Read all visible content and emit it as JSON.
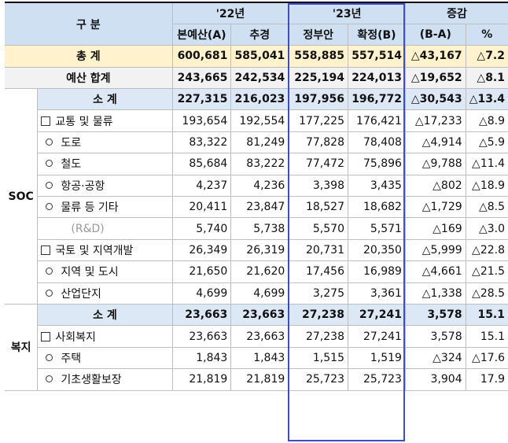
{
  "header": {
    "category": "구 분",
    "year22": "'22년",
    "year23": "'23년",
    "change": "증감",
    "col_main": "본예산(A)",
    "col_supp": "추경",
    "col_gov": "정부안",
    "col_final": "확정(B)",
    "col_diff": "(B-A)",
    "col_pct": "%"
  },
  "total": {
    "label": "총 계",
    "values": [
      "600,681",
      "585,041",
      "558,885",
      "557,514",
      "△43,167",
      "△7.2"
    ]
  },
  "budget_total": {
    "label": "예산 합계",
    "values": [
      "243,665",
      "242,534",
      "225,194",
      "224,013",
      "△19,652",
      "△8.1"
    ]
  },
  "soc": {
    "category": "SOC",
    "rows": [
      {
        "label": "소 계",
        "values": [
          "227,315",
          "216,023",
          "197,956",
          "196,772",
          "△30,543",
          "△13.4"
        ]
      },
      {
        "label": "교통 및 물류",
        "values": [
          "193,654",
          "192,554",
          "177,225",
          "176,421",
          "△17,233",
          "△8.9"
        ]
      },
      {
        "label": "도로",
        "values": [
          "83,322",
          "81,249",
          "77,828",
          "78,408",
          "△4,914",
          "△5.9"
        ]
      },
      {
        "label": "철도",
        "values": [
          "85,684",
          "83,222",
          "77,472",
          "75,896",
          "△9,788",
          "△11.4"
        ]
      },
      {
        "label": "항공·공항",
        "values": [
          "4,237",
          "4,236",
          "3,398",
          "3,435",
          "△802",
          "△18.9"
        ]
      },
      {
        "label": "물류 등 기타",
        "values": [
          "20,411",
          "23,847",
          "18,527",
          "18,682",
          "△1,729",
          "△8.5"
        ]
      },
      {
        "label": "(R&D)",
        "values": [
          "5,740",
          "5,738",
          "5,570",
          "5,571",
          "△169",
          "△3.0"
        ]
      },
      {
        "label": "국토 및 지역개발",
        "values": [
          "26,349",
          "26,319",
          "20,731",
          "20,350",
          "△5,999",
          "△22.8"
        ]
      },
      {
        "label": "지역 및 도시",
        "values": [
          "21,650",
          "21,620",
          "17,456",
          "16,989",
          "△4,661",
          "△21.5"
        ]
      },
      {
        "label": "산업단지",
        "values": [
          "4,699",
          "4,699",
          "3,275",
          "3,361",
          "△1,338",
          "△28.5"
        ]
      }
    ]
  },
  "welfare": {
    "category": "복지",
    "rows": [
      {
        "label": "소 계",
        "values": [
          "23,663",
          "23,663",
          "27,238",
          "27,241",
          "3,578",
          "15.1"
        ]
      },
      {
        "label": "사회복지",
        "values": [
          "23,663",
          "23,663",
          "27,238",
          "27,241",
          "3,578",
          "15.1"
        ]
      },
      {
        "label": "주택",
        "values": [
          "1,843",
          "1,843",
          "1,515",
          "1,519",
          "△324",
          "△17.6"
        ]
      },
      {
        "label": "기초생활보장",
        "values": [
          "21,819",
          "21,819",
          "25,723",
          "25,723",
          "3,904",
          "17.9"
        ]
      }
    ]
  }
}
